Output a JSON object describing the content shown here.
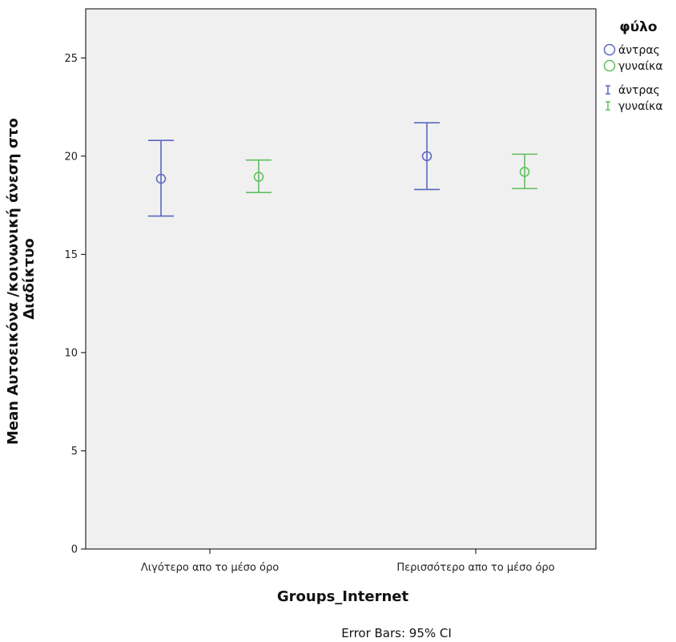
{
  "chart_data": {
    "type": "errorbar",
    "xlabel": "Groups_Internet",
    "ylabel_lines": [
      "Mean Αυτοεικόνα /κοινωνική άνεση στο",
      "Διαδίκτυο"
    ],
    "categories": [
      "Λιγότερο απο το μέσο όρο",
      "Περισσότερο απο το μέσο όρο"
    ],
    "ylim": [
      0,
      27.5
    ],
    "yticks": [
      "0",
      "5",
      "10",
      "15",
      "20",
      "25"
    ],
    "legend_title": "φύλο",
    "legend_position": "top-right-outside",
    "footnote": "Error Bars: 95% CI",
    "grid": false,
    "plot_background": "#f0f0f0",
    "series": [
      {
        "name": "άντρας",
        "color": "#5b67c0",
        "means": [
          18.85,
          20.0
        ],
        "ci_low": [
          16.95,
          18.3
        ],
        "ci_high": [
          20.8,
          21.7
        ]
      },
      {
        "name": "γυναίκα",
        "color": "#5fbf5f",
        "means": [
          18.95,
          19.2
        ],
        "ci_low": [
          18.15,
          18.35
        ],
        "ci_high": [
          19.8,
          20.1
        ]
      }
    ]
  }
}
